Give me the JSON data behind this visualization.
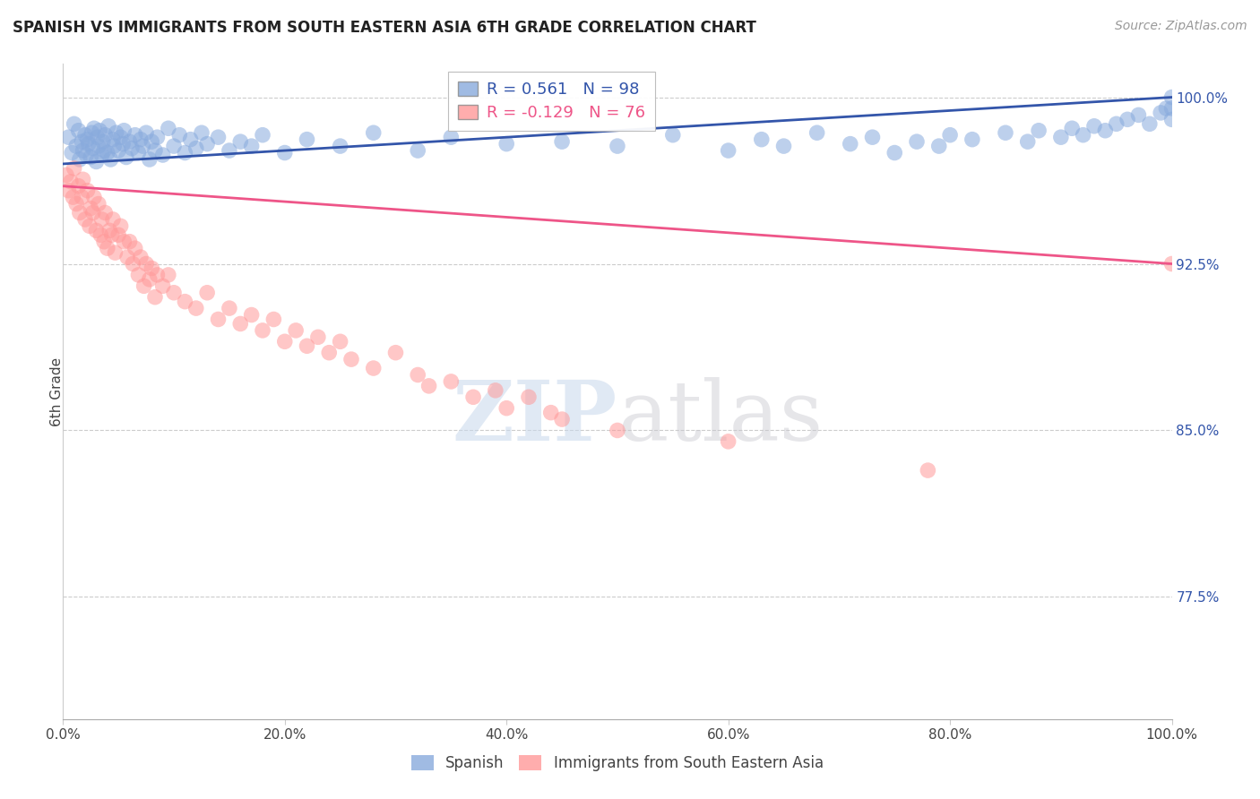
{
  "title": "SPANISH VS IMMIGRANTS FROM SOUTH EASTERN ASIA 6TH GRADE CORRELATION CHART",
  "source": "Source: ZipAtlas.com",
  "ylabel": "6th Grade",
  "ylabel_right_ticks": [
    100.0,
    92.5,
    85.0,
    77.5
  ],
  "ylabel_right_labels": [
    "100.0%",
    "92.5%",
    "85.0%",
    "77.5%"
  ],
  "xmin": 0.0,
  "xmax": 100.0,
  "ymin": 72.0,
  "ymax": 101.5,
  "blue_R": 0.561,
  "blue_N": 98,
  "pink_R": -0.129,
  "pink_N": 76,
  "blue_color": "#88AADD",
  "pink_color": "#FF9999",
  "blue_line_color": "#3355AA",
  "pink_line_color": "#EE5588",
  "legend_label_blue": "Spanish",
  "legend_label_pink": "Immigrants from South Eastern Asia",
  "watermark_zip": "ZIP",
  "watermark_atlas": "atlas",
  "blue_line_x": [
    0.0,
    100.0
  ],
  "blue_line_y": [
    97.0,
    100.0
  ],
  "pink_line_x": [
    0.0,
    100.0
  ],
  "pink_line_y": [
    96.0,
    92.5
  ],
  "blue_scatter_x": [
    0.5,
    0.8,
    1.0,
    1.2,
    1.4,
    1.5,
    1.7,
    1.8,
    2.0,
    2.1,
    2.2,
    2.3,
    2.5,
    2.6,
    2.7,
    2.8,
    3.0,
    3.1,
    3.2,
    3.3,
    3.5,
    3.6,
    3.7,
    3.8,
    4.0,
    4.1,
    4.3,
    4.5,
    4.6,
    4.8,
    5.0,
    5.2,
    5.4,
    5.5,
    5.7,
    6.0,
    6.2,
    6.5,
    6.8,
    7.0,
    7.2,
    7.5,
    7.8,
    8.0,
    8.3,
    8.5,
    9.0,
    9.5,
    10.0,
    10.5,
    11.0,
    11.5,
    12.0,
    12.5,
    13.0,
    14.0,
    15.0,
    16.0,
    17.0,
    18.0,
    20.0,
    22.0,
    25.0,
    28.0,
    32.0,
    35.0,
    40.0,
    45.0,
    50.0,
    55.0,
    60.0,
    63.0,
    65.0,
    68.0,
    71.0,
    73.0,
    75.0,
    77.0,
    79.0,
    80.0,
    82.0,
    85.0,
    87.0,
    88.0,
    90.0,
    91.0,
    92.0,
    93.0,
    94.0,
    95.0,
    96.0,
    97.0,
    98.0,
    99.0,
    99.5,
    100.0,
    100.0,
    100.0
  ],
  "blue_scatter_y": [
    98.2,
    97.5,
    98.8,
    97.8,
    98.5,
    97.2,
    98.0,
    97.6,
    98.3,
    97.4,
    98.1,
    97.9,
    97.3,
    98.4,
    97.7,
    98.6,
    97.1,
    98.2,
    97.8,
    98.5,
    97.4,
    98.0,
    97.6,
    98.3,
    97.5,
    98.7,
    97.2,
    98.1,
    97.8,
    98.4,
    97.6,
    98.2,
    97.9,
    98.5,
    97.3,
    98.0,
    97.7,
    98.3,
    97.5,
    98.1,
    97.8,
    98.4,
    97.2,
    98.0,
    97.6,
    98.2,
    97.4,
    98.6,
    97.8,
    98.3,
    97.5,
    98.1,
    97.7,
    98.4,
    97.9,
    98.2,
    97.6,
    98.0,
    97.8,
    98.3,
    97.5,
    98.1,
    97.8,
    98.4,
    97.6,
    98.2,
    97.9,
    98.0,
    97.8,
    98.3,
    97.6,
    98.1,
    97.8,
    98.4,
    97.9,
    98.2,
    97.5,
    98.0,
    97.8,
    98.3,
    98.1,
    98.4,
    98.0,
    98.5,
    98.2,
    98.6,
    98.3,
    98.7,
    98.5,
    98.8,
    99.0,
    99.2,
    98.8,
    99.3,
    99.5,
    99.0,
    99.5,
    100.0
  ],
  "pink_scatter_x": [
    0.3,
    0.5,
    0.7,
    0.9,
    1.0,
    1.2,
    1.4,
    1.5,
    1.7,
    1.8,
    2.0,
    2.2,
    2.4,
    2.5,
    2.7,
    2.8,
    3.0,
    3.2,
    3.4,
    3.5,
    3.7,
    3.8,
    4.0,
    4.2,
    4.4,
    4.5,
    4.7,
    5.0,
    5.2,
    5.5,
    5.8,
    6.0,
    6.3,
    6.5,
    6.8,
    7.0,
    7.3,
    7.5,
    7.8,
    8.0,
    8.3,
    8.5,
    9.0,
    9.5,
    10.0,
    11.0,
    12.0,
    13.0,
    14.0,
    15.0,
    16.0,
    17.0,
    18.0,
    19.0,
    20.0,
    21.0,
    22.0,
    23.0,
    24.0,
    25.0,
    26.0,
    28.0,
    30.0,
    32.0,
    33.0,
    35.0,
    37.0,
    39.0,
    40.0,
    42.0,
    44.0,
    45.0,
    50.0,
    60.0,
    78.0,
    100.0
  ],
  "pink_scatter_y": [
    96.5,
    95.8,
    96.2,
    95.5,
    96.8,
    95.2,
    96.0,
    94.8,
    95.5,
    96.3,
    94.5,
    95.8,
    94.2,
    95.0,
    94.8,
    95.5,
    94.0,
    95.2,
    93.8,
    94.5,
    93.5,
    94.8,
    93.2,
    94.0,
    93.8,
    94.5,
    93.0,
    93.8,
    94.2,
    93.5,
    92.8,
    93.5,
    92.5,
    93.2,
    92.0,
    92.8,
    91.5,
    92.5,
    91.8,
    92.3,
    91.0,
    92.0,
    91.5,
    92.0,
    91.2,
    90.8,
    90.5,
    91.2,
    90.0,
    90.5,
    89.8,
    90.2,
    89.5,
    90.0,
    89.0,
    89.5,
    88.8,
    89.2,
    88.5,
    89.0,
    88.2,
    87.8,
    88.5,
    87.5,
    87.0,
    87.2,
    86.5,
    86.8,
    86.0,
    86.5,
    85.8,
    85.5,
    85.0,
    84.5,
    83.2,
    92.5
  ]
}
